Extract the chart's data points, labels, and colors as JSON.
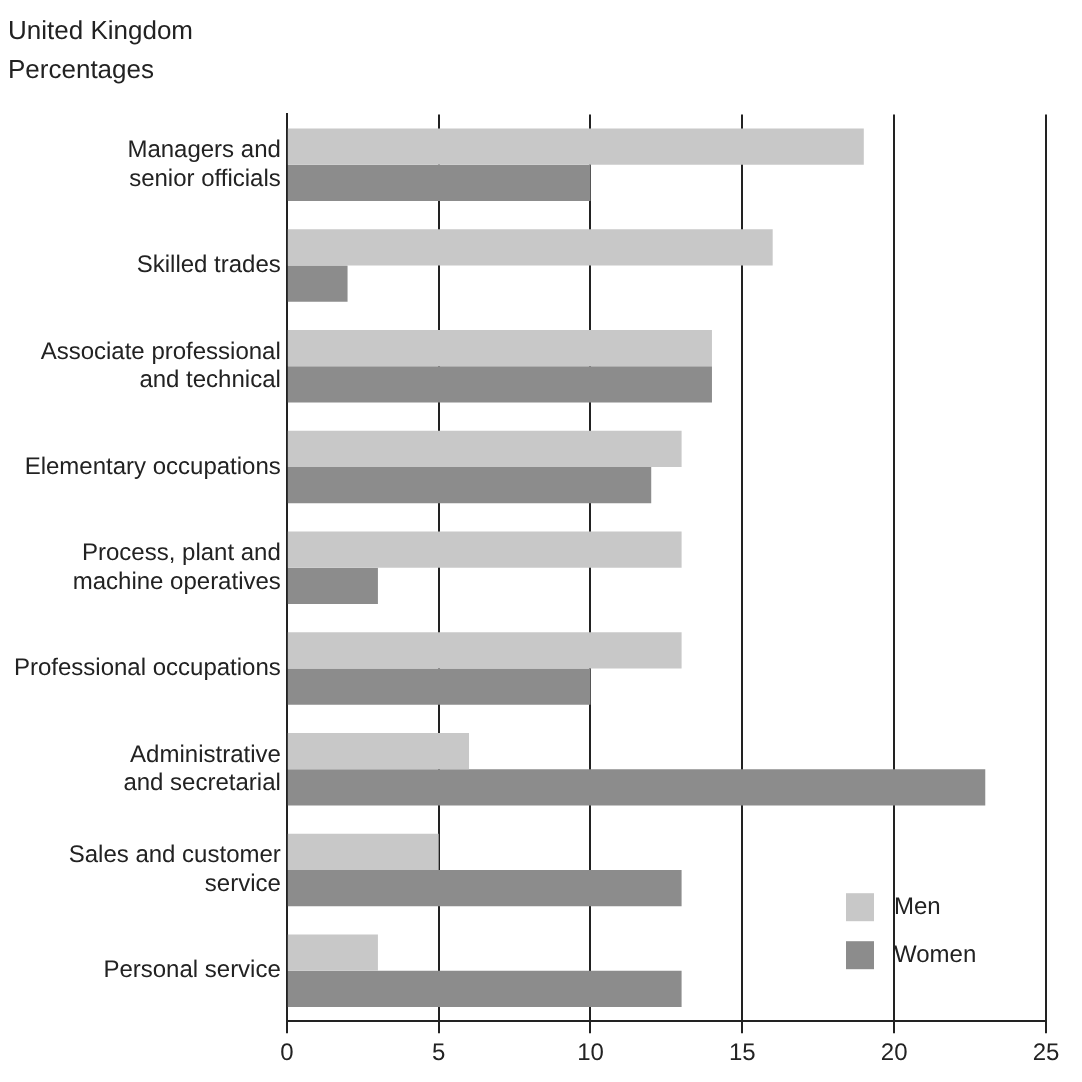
{
  "chart_data": {
    "type": "bar",
    "orientation": "horizontal",
    "title": "United Kingdom",
    "subtitle": "Percentages",
    "categories": [
      "Managers and\nsenior officials",
      "Skilled trades",
      "Associate professional\nand technical",
      "Elementary occupations",
      "Process, plant and\nmachine operatives",
      "Professional occupations",
      "Administrative\nand secretarial",
      "Sales and customer\nservice",
      "Personal service"
    ],
    "series": [
      {
        "name": "Men",
        "color": "#c8c8c8",
        "values": [
          19,
          16,
          14,
          13,
          13,
          13,
          6,
          5,
          3
        ]
      },
      {
        "name": "Women",
        "color": "#8c8c8c",
        "values": [
          10,
          2,
          14,
          12,
          3,
          10,
          23,
          13,
          13
        ]
      }
    ],
    "xlim": [
      0,
      25
    ],
    "xticks": [
      0,
      5,
      10,
      15,
      20,
      25
    ],
    "grid": "x",
    "legend": "bottom right"
  }
}
